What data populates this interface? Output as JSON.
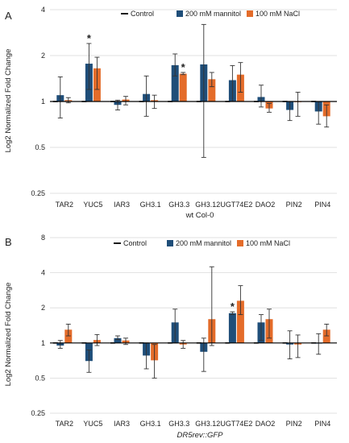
{
  "figure": {
    "panels": [
      {
        "letter": "A",
        "ylabel": "Log2 Normalized Fold Change",
        "xlabel": "wt Col-0"
      },
      {
        "letter": "B",
        "ylabel": "Log2 Normalized Fold Change",
        "xlabel": "DR5rev::GFP"
      }
    ],
    "legend": {
      "control": "Control",
      "mannitol": "200 mM mannitol",
      "nacl": "100 mM NaCl"
    },
    "colors": {
      "mannitol": "#1f4e79",
      "nacl": "#e46c2a",
      "control": "#000000",
      "gridline": "#d9d9d9"
    },
    "significance_marker": "*"
  },
  "chart_data": [
    {
      "type": "bar",
      "ylabel": "Log2 Normalized Fold Change",
      "xlabel": "wt Col-0",
      "y_scale": "log2",
      "ylim": [
        0.25,
        4
      ],
      "yticks": [
        "0.25",
        "0.5",
        "1",
        "2",
        "4"
      ],
      "grid": true,
      "legend_position": "top",
      "categories": [
        "TAR2",
        "YUC5",
        "IAR3",
        "GH3.1",
        "GH3.3",
        "GH3.12",
        "UGT74E2",
        "DAO2",
        "PIN2",
        "PIN4"
      ],
      "series": [
        {
          "name": "Control",
          "values": [
            1,
            1,
            1,
            1,
            1,
            1,
            1,
            1,
            1,
            1
          ]
        },
        {
          "name": "200 mM mannitol",
          "values": [
            1.1,
            1.77,
            0.95,
            1.12,
            1.73,
            1.75,
            1.38,
            1.07,
            0.88,
            0.86
          ],
          "err_low": [
            0.78,
            1.2,
            0.88,
            0.8,
            1.47,
            0.43,
            1.0,
            0.92,
            0.75,
            0.71
          ],
          "err_high": [
            1.45,
            2.4,
            1.02,
            1.47,
            2.05,
            3.2,
            1.72,
            1.28,
            1.0,
            1.0
          ]
        },
        {
          "name": "100 mM NaCl",
          "values": [
            1.02,
            1.65,
            1.03,
            1.02,
            1.52,
            1.4,
            1.5,
            0.9,
            1.0,
            0.8
          ],
          "err_low": [
            0.98,
            1.2,
            0.95,
            0.9,
            1.5,
            1.25,
            1.15,
            0.85,
            0.8,
            0.68
          ],
          "err_high": [
            1.06,
            1.95,
            1.08,
            1.1,
            1.55,
            1.55,
            1.8,
            0.97,
            1.15,
            0.95
          ]
        }
      ],
      "annotations": [
        {
          "text": "*",
          "category": "YUC5",
          "series": "200 mM mannitol"
        },
        {
          "text": "*",
          "category": "GH3.3",
          "series": "100 mM NaCl"
        }
      ]
    },
    {
      "type": "bar",
      "ylabel": "Log2 Normalized Fold Change",
      "xlabel": "DR5rev::GFP",
      "y_scale": "log2",
      "ylim": [
        0.25,
        8
      ],
      "yticks": [
        "0.25",
        "0.5",
        "1",
        "2",
        "4",
        "8"
      ],
      "grid": true,
      "legend_position": "top",
      "categories": [
        "TAR2",
        "YUC5",
        "IAR3",
        "GH3.1",
        "GH3.3",
        "GH3.12",
        "UGT74E2",
        "DAO2",
        "PIN2",
        "PIN4"
      ],
      "series": [
        {
          "name": "Control",
          "values": [
            1,
            1,
            1,
            1,
            1,
            1,
            1,
            1,
            1,
            1
          ]
        },
        {
          "name": "200 mM mannitol",
          "values": [
            0.95,
            0.7,
            1.1,
            0.78,
            1.5,
            0.84,
            1.8,
            1.5,
            0.97,
            1.0
          ],
          "err_low": [
            0.9,
            0.56,
            1.07,
            0.6,
            1.0,
            0.57,
            1.75,
            1.05,
            0.73,
            0.8
          ],
          "err_high": [
            1.05,
            0.87,
            1.15,
            1.0,
            1.95,
            1.1,
            1.85,
            1.75,
            1.27,
            1.2
          ]
        },
        {
          "name": "100 mM NaCl",
          "values": [
            1.3,
            1.06,
            1.05,
            0.71,
            0.97,
            1.6,
            2.3,
            1.6,
            0.97,
            1.3
          ],
          "err_low": [
            1.15,
            0.95,
            0.97,
            0.5,
            0.9,
            0.95,
            1.75,
            1.1,
            0.75,
            1.15
          ],
          "err_high": [
            1.45,
            1.18,
            1.1,
            0.97,
            1.05,
            4.5,
            3.1,
            1.95,
            1.17,
            1.45
          ]
        }
      ],
      "annotations": [
        {
          "text": "*",
          "category": "UGT74E2",
          "series": "200 mM mannitol"
        }
      ]
    }
  ]
}
